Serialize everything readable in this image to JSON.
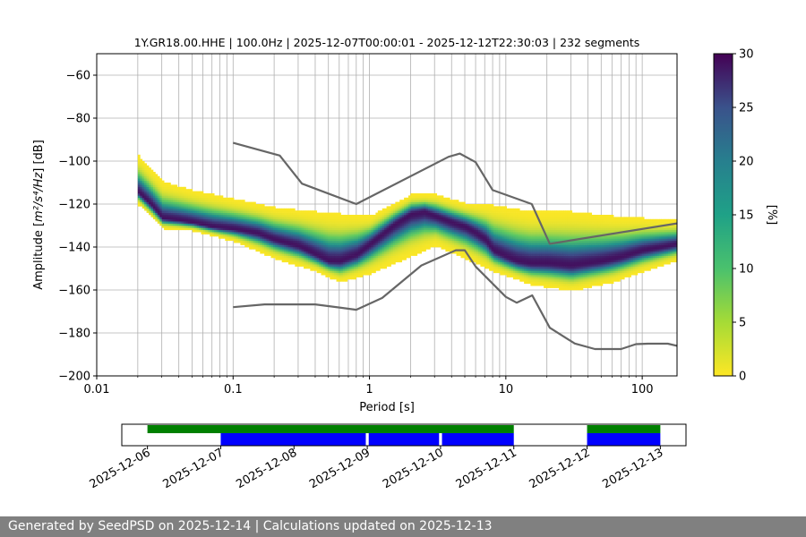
{
  "chart_data": {
    "type": "heatmap",
    "title": "1Y.GR18.00.HHE | 100.0Hz | 2025-12-07T00:00:01 - 2025-12-12T22:30:03 | 232 segments",
    "xlabel": "Period [s]",
    "ylabel_prefix": "Amplitude [",
    "ylabel_math": "m²/s⁴/Hz",
    "ylabel_suffix": "] [dB]",
    "x_scale": "log",
    "xlim": [
      0.01,
      180
    ],
    "ylim": [
      -200,
      -50
    ],
    "x_ticks": [
      0.01,
      0.1,
      1,
      10,
      100
    ],
    "x_tick_labels": [
      "0.01",
      "0.1",
      "1",
      "10",
      "100"
    ],
    "y_ticks": [
      -200,
      -180,
      -160,
      -140,
      -120,
      -100,
      -80,
      -60
    ],
    "y_tick_labels": [
      "−200",
      "−180",
      "−160",
      "−140",
      "−120",
      "−100",
      "−80",
      "−60"
    ],
    "grid": true,
    "colorbar": {
      "label": "[%]",
      "range": [
        0,
        30
      ],
      "ticks": [
        0,
        5,
        10,
        15,
        20,
        25,
        30
      ],
      "tick_labels": [
        "0",
        "5",
        "10",
        "15",
        "20",
        "25",
        "30"
      ],
      "colormap": "viridis_r"
    },
    "density_mode": {
      "x": [
        0.02,
        0.025,
        0.03,
        0.04,
        0.05,
        0.07,
        0.1,
        0.15,
        0.2,
        0.3,
        0.4,
        0.5,
        0.6,
        0.8,
        1,
        1.5,
        2,
        2.5,
        3,
        4,
        5,
        6,
        7,
        8,
        10,
        12,
        15,
        20,
        30,
        50,
        70,
        100,
        150,
        180
      ],
      "y": [
        -115,
        -121,
        -127,
        -128,
        -129,
        -131,
        -132,
        -134,
        -137,
        -140,
        -144,
        -147,
        -147,
        -144,
        -139,
        -130,
        -125,
        -124,
        -126,
        -129,
        -131,
        -134,
        -137,
        -142,
        -145,
        -147,
        -148,
        -148,
        -149,
        -147,
        -145,
        -142,
        -140,
        -139
      ]
    },
    "density_spread": {
      "x": [
        0.02,
        0.03,
        0.05,
        0.1,
        0.2,
        0.4,
        0.6,
        1,
        2,
        3,
        5,
        8,
        15,
        30,
        60,
        100,
        180
      ],
      "upper": [
        -98,
        -110,
        -114,
        -118,
        -122,
        -124,
        -125,
        -126,
        -116,
        -116,
        -120,
        -121,
        -124,
        -124,
        -126,
        -127,
        -128
      ],
      "lower": [
        -121,
        -132,
        -133,
        -138,
        -146,
        -152,
        -157,
        -153,
        -145,
        -140,
        -146,
        -152,
        -158,
        -161,
        -157,
        -152,
        -147
      ]
    },
    "reference_lines": [
      {
        "x": [
          0.1,
          0.22,
          0.32,
          0.8,
          3.8,
          4.6,
          6,
          8,
          15.5,
          21,
          180
        ],
        "y": [
          -91.5,
          -97.4,
          -110.5,
          -120,
          -98,
          -96.5,
          -100.5,
          -113.5,
          -120,
          -138.5,
          -129
        ]
      },
      {
        "x": [
          0.1,
          0.17,
          0.4,
          0.8,
          1.24,
          2.4,
          4.3,
          5.0,
          6.0,
          10,
          12,
          15.6,
          21,
          32,
          45,
          70,
          90,
          110,
          154,
          180
        ],
        "y": [
          -168,
          -166.7,
          -166.7,
          -169.2,
          -163.7,
          -148.6,
          -141.5,
          -141.5,
          -149.1,
          -163.2,
          -165.9,
          -162.5,
          -177.6,
          -184.9,
          -187.5,
          -187.5,
          -185.2,
          -185,
          -185,
          -186
        ]
      }
    ],
    "reference_line_color": "#666666",
    "timeline": {
      "x_tick_labels": [
        "2025-12-06",
        "2025-12-07",
        "2025-12-08",
        "2025-12-09",
        "2025-12-10",
        "2025-12-11",
        "2025-12-12",
        "2025-12-13"
      ],
      "xlim_days": [
        -0.35,
        7.35
      ],
      "green_bars": [
        [
          0.0,
          5.0
        ],
        [
          6.0,
          7.0
        ]
      ],
      "blue_bars": [
        [
          1.0,
          2.98
        ],
        [
          3.02,
          3.98
        ],
        [
          4.02,
          5.0
        ],
        [
          6.0,
          7.0
        ]
      ],
      "colors": {
        "green": "#008000",
        "blue": "#0000ff"
      }
    }
  },
  "footer": {
    "text": "Generated by SeedPSD on 2025-12-14 | Calculations updated on 2025-12-13"
  }
}
